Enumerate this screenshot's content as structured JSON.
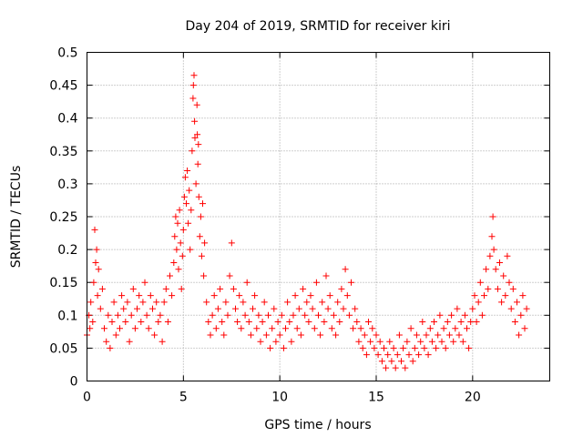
{
  "chart_data": {
    "type": "scatter",
    "title": "Day 204 of 2019, SRMTID for receiver kiri",
    "xlabel": "GPS time / hours",
    "ylabel": "SRMTID / TECUs",
    "xlim": [
      0,
      24
    ],
    "ylim": [
      0,
      0.5
    ],
    "x_ticks": [
      0,
      5,
      10,
      15,
      20
    ],
    "x_tick_labels": [
      "0",
      "5",
      "10",
      "15",
      "20"
    ],
    "y_ticks": [
      0,
      0.05,
      0.1,
      0.15,
      0.2,
      0.25,
      0.3,
      0.35,
      0.4,
      0.45,
      0.5
    ],
    "y_tick_labels": [
      "0",
      "0.05",
      "0.1",
      "0.15",
      "0.2",
      "0.25",
      "0.3",
      "0.35",
      "0.4",
      "0.45",
      "0.5"
    ],
    "grid": true,
    "marker": "plus",
    "color": "#ff0000",
    "series": [
      {
        "name": "SRMTID",
        "points": [
          [
            0.0,
            0.07
          ],
          [
            0.1,
            0.1
          ],
          [
            0.15,
            0.08
          ],
          [
            0.2,
            0.12
          ],
          [
            0.3,
            0.09
          ],
          [
            0.35,
            0.15
          ],
          [
            0.4,
            0.23
          ],
          [
            0.45,
            0.18
          ],
          [
            0.5,
            0.2
          ],
          [
            0.55,
            0.13
          ],
          [
            0.6,
            0.17
          ],
          [
            0.7,
            0.11
          ],
          [
            0.8,
            0.14
          ],
          [
            0.9,
            0.08
          ],
          [
            1.0,
            0.06
          ],
          [
            1.1,
            0.1
          ],
          [
            1.2,
            0.05
          ],
          [
            1.3,
            0.09
          ],
          [
            1.4,
            0.12
          ],
          [
            1.5,
            0.07
          ],
          [
            1.6,
            0.1
          ],
          [
            1.7,
            0.08
          ],
          [
            1.8,
            0.13
          ],
          [
            1.9,
            0.11
          ],
          [
            2.0,
            0.09
          ],
          [
            2.1,
            0.12
          ],
          [
            2.2,
            0.06
          ],
          [
            2.3,
            0.1
          ],
          [
            2.4,
            0.14
          ],
          [
            2.5,
            0.08
          ],
          [
            2.6,
            0.11
          ],
          [
            2.7,
            0.13
          ],
          [
            2.8,
            0.09
          ],
          [
            2.9,
            0.12
          ],
          [
            3.0,
            0.15
          ],
          [
            3.1,
            0.1
          ],
          [
            3.2,
            0.08
          ],
          [
            3.3,
            0.13
          ],
          [
            3.4,
            0.11
          ],
          [
            3.5,
            0.07
          ],
          [
            3.6,
            0.12
          ],
          [
            3.7,
            0.09
          ],
          [
            3.8,
            0.1
          ],
          [
            3.9,
            0.06
          ],
          [
            4.0,
            0.12
          ],
          [
            4.1,
            0.14
          ],
          [
            4.2,
            0.09
          ],
          [
            4.3,
            0.16
          ],
          [
            4.4,
            0.13
          ],
          [
            4.5,
            0.18
          ],
          [
            4.55,
            0.22
          ],
          [
            4.6,
            0.25
          ],
          [
            4.65,
            0.2
          ],
          [
            4.7,
            0.24
          ],
          [
            4.75,
            0.17
          ],
          [
            4.8,
            0.26
          ],
          [
            4.85,
            0.21
          ],
          [
            4.9,
            0.14
          ],
          [
            4.95,
            0.19
          ],
          [
            5.0,
            0.23
          ],
          [
            5.05,
            0.28
          ],
          [
            5.1,
            0.31
          ],
          [
            5.15,
            0.27
          ],
          [
            5.2,
            0.32
          ],
          [
            5.25,
            0.24
          ],
          [
            5.3,
            0.29
          ],
          [
            5.35,
            0.2
          ],
          [
            5.4,
            0.26
          ],
          [
            5.45,
            0.35
          ],
          [
            5.5,
            0.43
          ],
          [
            5.52,
            0.45
          ],
          [
            5.55,
            0.465
          ],
          [
            5.58,
            0.395
          ],
          [
            5.6,
            0.37
          ],
          [
            5.65,
            0.3
          ],
          [
            5.7,
            0.42
          ],
          [
            5.72,
            0.375
          ],
          [
            5.75,
            0.33
          ],
          [
            5.78,
            0.36
          ],
          [
            5.8,
            0.28
          ],
          [
            5.85,
            0.22
          ],
          [
            5.9,
            0.25
          ],
          [
            5.95,
            0.19
          ],
          [
            6.0,
            0.27
          ],
          [
            6.05,
            0.16
          ],
          [
            6.1,
            0.21
          ],
          [
            6.2,
            0.12
          ],
          [
            6.3,
            0.09
          ],
          [
            6.4,
            0.07
          ],
          [
            6.5,
            0.1
          ],
          [
            6.6,
            0.13
          ],
          [
            6.7,
            0.08
          ],
          [
            6.8,
            0.11
          ],
          [
            6.9,
            0.14
          ],
          [
            7.0,
            0.09
          ],
          [
            7.1,
            0.07
          ],
          [
            7.2,
            0.12
          ],
          [
            7.3,
            0.1
          ],
          [
            7.4,
            0.16
          ],
          [
            7.5,
            0.21
          ],
          [
            7.6,
            0.14
          ],
          [
            7.7,
            0.11
          ],
          [
            7.8,
            0.09
          ],
          [
            7.9,
            0.13
          ],
          [
            8.0,
            0.08
          ],
          [
            8.1,
            0.12
          ],
          [
            8.2,
            0.1
          ],
          [
            8.3,
            0.15
          ],
          [
            8.4,
            0.09
          ],
          [
            8.5,
            0.07
          ],
          [
            8.6,
            0.11
          ],
          [
            8.7,
            0.13
          ],
          [
            8.8,
            0.08
          ],
          [
            8.9,
            0.1
          ],
          [
            9.0,
            0.06
          ],
          [
            9.1,
            0.09
          ],
          [
            9.2,
            0.12
          ],
          [
            9.3,
            0.07
          ],
          [
            9.4,
            0.1
          ],
          [
            9.5,
            0.05
          ],
          [
            9.6,
            0.08
          ],
          [
            9.7,
            0.11
          ],
          [
            9.8,
            0.06
          ],
          [
            9.9,
            0.09
          ],
          [
            10.0,
            0.07
          ],
          [
            10.1,
            0.1
          ],
          [
            10.2,
            0.05
          ],
          [
            10.3,
            0.08
          ],
          [
            10.4,
            0.12
          ],
          [
            10.5,
            0.09
          ],
          [
            10.6,
            0.06
          ],
          [
            10.7,
            0.1
          ],
          [
            10.8,
            0.13
          ],
          [
            10.9,
            0.08
          ],
          [
            11.0,
            0.11
          ],
          [
            11.1,
            0.07
          ],
          [
            11.2,
            0.14
          ],
          [
            11.3,
            0.1
          ],
          [
            11.4,
            0.12
          ],
          [
            11.5,
            0.09
          ],
          [
            11.6,
            0.13
          ],
          [
            11.7,
            0.11
          ],
          [
            11.8,
            0.08
          ],
          [
            11.9,
            0.15
          ],
          [
            12.0,
            0.1
          ],
          [
            12.1,
            0.07
          ],
          [
            12.2,
            0.12
          ],
          [
            12.3,
            0.09
          ],
          [
            12.4,
            0.16
          ],
          [
            12.5,
            0.11
          ],
          [
            12.6,
            0.13
          ],
          [
            12.7,
            0.08
          ],
          [
            12.8,
            0.1
          ],
          [
            12.9,
            0.07
          ],
          [
            13.0,
            0.12
          ],
          [
            13.1,
            0.09
          ],
          [
            13.2,
            0.14
          ],
          [
            13.3,
            0.11
          ],
          [
            13.4,
            0.17
          ],
          [
            13.5,
            0.13
          ],
          [
            13.6,
            0.1
          ],
          [
            13.7,
            0.15
          ],
          [
            13.8,
            0.08
          ],
          [
            13.9,
            0.11
          ],
          [
            14.0,
            0.09
          ],
          [
            14.1,
            0.06
          ],
          [
            14.2,
            0.08
          ],
          [
            14.3,
            0.05
          ],
          [
            14.4,
            0.07
          ],
          [
            14.5,
            0.04
          ],
          [
            14.6,
            0.09
          ],
          [
            14.7,
            0.06
          ],
          [
            14.8,
            0.08
          ],
          [
            14.9,
            0.05
          ],
          [
            15.0,
            0.07
          ],
          [
            15.1,
            0.04
          ],
          [
            15.2,
            0.06
          ],
          [
            15.3,
            0.03
          ],
          [
            15.4,
            0.05
          ],
          [
            15.5,
            0.02
          ],
          [
            15.6,
            0.04
          ],
          [
            15.7,
            0.06
          ],
          [
            15.8,
            0.03
          ],
          [
            15.9,
            0.05
          ],
          [
            16.0,
            0.02
          ],
          [
            16.1,
            0.04
          ],
          [
            16.2,
            0.07
          ],
          [
            16.3,
            0.03
          ],
          [
            16.4,
            0.05
          ],
          [
            16.5,
            0.02
          ],
          [
            16.6,
            0.06
          ],
          [
            16.7,
            0.04
          ],
          [
            16.8,
            0.08
          ],
          [
            16.9,
            0.03
          ],
          [
            17.0,
            0.05
          ],
          [
            17.1,
            0.07
          ],
          [
            17.2,
            0.04
          ],
          [
            17.3,
            0.06
          ],
          [
            17.4,
            0.09
          ],
          [
            17.5,
            0.05
          ],
          [
            17.6,
            0.07
          ],
          [
            17.7,
            0.04
          ],
          [
            17.8,
            0.08
          ],
          [
            17.9,
            0.06
          ],
          [
            18.0,
            0.09
          ],
          [
            18.1,
            0.05
          ],
          [
            18.2,
            0.07
          ],
          [
            18.3,
            0.1
          ],
          [
            18.4,
            0.06
          ],
          [
            18.5,
            0.08
          ],
          [
            18.6,
            0.05
          ],
          [
            18.7,
            0.09
          ],
          [
            18.8,
            0.07
          ],
          [
            18.9,
            0.1
          ],
          [
            19.0,
            0.06
          ],
          [
            19.1,
            0.08
          ],
          [
            19.2,
            0.11
          ],
          [
            19.3,
            0.07
          ],
          [
            19.4,
            0.09
          ],
          [
            19.5,
            0.06
          ],
          [
            19.6,
            0.1
          ],
          [
            19.7,
            0.08
          ],
          [
            19.8,
            0.05
          ],
          [
            19.9,
            0.09
          ],
          [
            20.0,
            0.11
          ],
          [
            20.1,
            0.13
          ],
          [
            20.2,
            0.09
          ],
          [
            20.3,
            0.12
          ],
          [
            20.4,
            0.15
          ],
          [
            20.5,
            0.1
          ],
          [
            20.6,
            0.13
          ],
          [
            20.7,
            0.17
          ],
          [
            20.8,
            0.14
          ],
          [
            20.9,
            0.19
          ],
          [
            21.0,
            0.22
          ],
          [
            21.05,
            0.25
          ],
          [
            21.1,
            0.2
          ],
          [
            21.2,
            0.17
          ],
          [
            21.3,
            0.14
          ],
          [
            21.4,
            0.18
          ],
          [
            21.5,
            0.12
          ],
          [
            21.6,
            0.16
          ],
          [
            21.7,
            0.13
          ],
          [
            21.8,
            0.19
          ],
          [
            21.9,
            0.15
          ],
          [
            22.0,
            0.11
          ],
          [
            22.1,
            0.14
          ],
          [
            22.2,
            0.09
          ],
          [
            22.3,
            0.12
          ],
          [
            22.4,
            0.07
          ],
          [
            22.5,
            0.1
          ],
          [
            22.6,
            0.13
          ],
          [
            22.7,
            0.08
          ],
          [
            22.8,
            0.11
          ]
        ]
      }
    ]
  }
}
